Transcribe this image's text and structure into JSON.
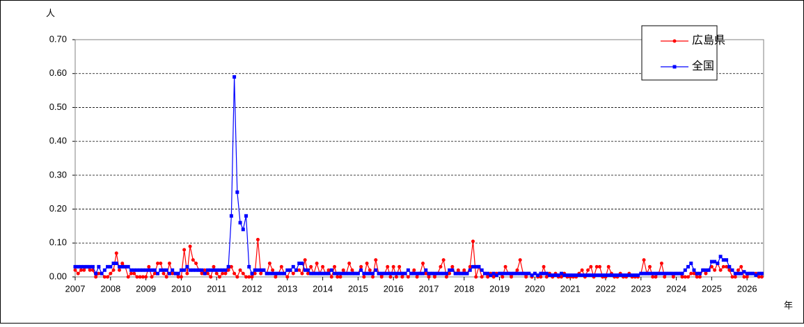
{
  "chart_data": {
    "type": "line",
    "y_label": "人",
    "x_label": "年",
    "categories": [
      "2007",
      null,
      null,
      null,
      null,
      null,
      null,
      null,
      null,
      null,
      null,
      null,
      "2008",
      null,
      null,
      null,
      null,
      null,
      null,
      null,
      null,
      null,
      null,
      null,
      "2009",
      null,
      null,
      null,
      null,
      null,
      null,
      null,
      null,
      null,
      null,
      null,
      "2010",
      null,
      null,
      null,
      null,
      null,
      null,
      null,
      null,
      null,
      null,
      null,
      "2011",
      null,
      null,
      null,
      null,
      null,
      null,
      null,
      null,
      null,
      null,
      null,
      "2012",
      null,
      null,
      null,
      null,
      null,
      null,
      null,
      null,
      null,
      null,
      null,
      "2013",
      null,
      null,
      null,
      null,
      null,
      null,
      null,
      null,
      null,
      null,
      null,
      "2014",
      null,
      null,
      null,
      null,
      null,
      null,
      null,
      null,
      null,
      null,
      null,
      "2015",
      null,
      null,
      null,
      null,
      null,
      null,
      null,
      null,
      null,
      null,
      null,
      "2016",
      null,
      null,
      null,
      null,
      null,
      null,
      null,
      null,
      null,
      null,
      null,
      "2017",
      null,
      null,
      null,
      null,
      null,
      null,
      null,
      null,
      null,
      null,
      null,
      "2018",
      null,
      null,
      null,
      null,
      null,
      null,
      null,
      null,
      null,
      null,
      null,
      "2019",
      null,
      null,
      null,
      null,
      null,
      null,
      null,
      null,
      null,
      null,
      null,
      "2020",
      null,
      null,
      null,
      null,
      null,
      null,
      null,
      null,
      null,
      null,
      null,
      "2021",
      null,
      null,
      null,
      null,
      null,
      null,
      null,
      null,
      null,
      null,
      null,
      "2022",
      null,
      null,
      null,
      null,
      null,
      null,
      null,
      null,
      null,
      null,
      null,
      "2023",
      null,
      null,
      null,
      null,
      null,
      null,
      null,
      null,
      null,
      null,
      null,
      "2024",
      null,
      null,
      null,
      null,
      null,
      null,
      null,
      null,
      null,
      null,
      null,
      "2025",
      null,
      null,
      null,
      null,
      null,
      null,
      null,
      null,
      null,
      null,
      null,
      "2026",
      null,
      null,
      null,
      null,
      null
    ],
    "series": [
      {
        "name": "広島県",
        "color": "#ff0000",
        "marker": "circle",
        "values": [
          0.02,
          0.01,
          0.02,
          0.02,
          0.03,
          0.02,
          0.02,
          0,
          0.01,
          0.01,
          0,
          0,
          0.01,
          0.02,
          0.07,
          0.02,
          0.04,
          0.03,
          0,
          0.01,
          0.01,
          0,
          0,
          0,
          0,
          0.03,
          0,
          0.01,
          0.04,
          0.04,
          0.01,
          0,
          0.04,
          0.01,
          0.01,
          0,
          0,
          0.08,
          0.01,
          0.09,
          0.05,
          0.04,
          0.02,
          0.01,
          0.02,
          0.01,
          0,
          0.03,
          0.01,
          0,
          0.01,
          0.01,
          0.02,
          0.03,
          0.01,
          0,
          0.02,
          0.01,
          0,
          0,
          0,
          0.01,
          0.11,
          0.01,
          0.02,
          0.01,
          0.04,
          0.02,
          0,
          0.01,
          0.03,
          0.01,
          0,
          0.02,
          0.01,
          0.02,
          0.02,
          0.01,
          0.05,
          0.01,
          0.03,
          0.01,
          0.04,
          0.01,
          0.03,
          0.01,
          0.02,
          0,
          0.03,
          0,
          0,
          0.02,
          0.01,
          0.04,
          0.02,
          0.01,
          0.01,
          0.03,
          0,
          0.04,
          0.02,
          0,
          0.05,
          0.01,
          0,
          0.01,
          0.03,
          0,
          0.03,
          0,
          0.03,
          0,
          0.01,
          0,
          0.01,
          0.02,
          0,
          0.01,
          0.04,
          0.01,
          0,
          0.01,
          0,
          0.01,
          0.03,
          0.05,
          0,
          0.01,
          0.03,
          0.01,
          0.02,
          0.01,
          0.02,
          0.01,
          0.03,
          0.105,
          0,
          0.03,
          0,
          0.01,
          0,
          0.01,
          0,
          0.01,
          0.01,
          0,
          0.03,
          0.01,
          0,
          0.01,
          0.02,
          0.05,
          0.01,
          0,
          0.01,
          0,
          0.01,
          0,
          0,
          0.03,
          0,
          0.01,
          0,
          0.01,
          0,
          0,
          0.01,
          0,
          0,
          0,
          0,
          0.01,
          0.02,
          0,
          0.02,
          0.03,
          0,
          0.03,
          0.03,
          0,
          0,
          0.03,
          0.01,
          0,
          0,
          0.01,
          0,
          0,
          0.01,
          0,
          0,
          0,
          0.01,
          0.05,
          0.01,
          0.03,
          0,
          0,
          0.01,
          0.04,
          0,
          0.01,
          0.01,
          0,
          0.01,
          0.01,
          0,
          0,
          0,
          0.01,
          0.01,
          0,
          0,
          0.02,
          0.01,
          0.02,
          0.03,
          0.02,
          0.04,
          0.02,
          0.03,
          0.03,
          0.02,
          0,
          0,
          0.02,
          0.03,
          0,
          0,
          0.01,
          0.01,
          0.01,
          0,
          0
        ]
      },
      {
        "name": "全国",
        "color": "#0000ff",
        "marker": "square",
        "values": [
          0.03,
          0.03,
          0.03,
          0.03,
          0.03,
          0.03,
          0.03,
          0.01,
          0.03,
          0.01,
          0.02,
          0.03,
          0.03,
          0.04,
          0.04,
          0.03,
          0.03,
          0.03,
          0.03,
          0.02,
          0.02,
          0.02,
          0.02,
          0.02,
          0.02,
          0.02,
          0.02,
          0.02,
          0.01,
          0.02,
          0.02,
          0.02,
          0.01,
          0.02,
          0.01,
          0.01,
          0.02,
          0.02,
          0.03,
          0.02,
          0.02,
          0.02,
          0.02,
          0.02,
          0.01,
          0.02,
          0.02,
          0.02,
          0.02,
          0.02,
          0.02,
          0.02,
          0.03,
          0.18,
          0.59,
          0.25,
          0.16,
          0.14,
          0.18,
          0.03,
          0.01,
          0.02,
          0.02,
          0.02,
          0.02,
          0.01,
          0.01,
          0.01,
          0.01,
          0.01,
          0.01,
          0.01,
          0.02,
          0.02,
          0.03,
          0.02,
          0.04,
          0.04,
          0.02,
          0.02,
          0.01,
          0.01,
          0.01,
          0.01,
          0.01,
          0.01,
          0.01,
          0.02,
          0.01,
          0.01,
          0.01,
          0.01,
          0.01,
          0.01,
          0.01,
          0.01,
          0.01,
          0.02,
          0.01,
          0.01,
          0.01,
          0.01,
          0.02,
          0.01,
          0.01,
          0.01,
          0.01,
          0.01,
          0.01,
          0.01,
          0.01,
          0.01,
          0.01,
          0.02,
          0.01,
          0.01,
          0.01,
          0.01,
          0.01,
          0.02,
          0.01,
          0.01,
          0.01,
          0.01,
          0.01,
          0.01,
          0.01,
          0.02,
          0.02,
          0.01,
          0.01,
          0.01,
          0.01,
          0.01,
          0.02,
          0.03,
          0.03,
          0.03,
          0.02,
          0.01,
          0.01,
          0.005,
          0.01,
          0.005,
          0.01,
          0.01,
          0.01,
          0.01,
          0.01,
          0.01,
          0.01,
          0.01,
          0.01,
          0.01,
          0.01,
          0.005,
          0.01,
          0.005,
          0.01,
          0.01,
          0.01,
          0.005,
          0.005,
          0.005,
          0.005,
          0.01,
          0.005,
          0.005,
          0.005,
          0.005,
          0.005,
          0.005,
          0.005,
          0.005,
          0.005,
          0.005,
          0.005,
          0.005,
          0.005,
          0.005,
          0.005,
          0.005,
          0.005,
          0.005,
          0.005,
          0.005,
          0.005,
          0.005,
          0.005,
          0.005,
          0.005,
          0.005,
          0.01,
          0.01,
          0.01,
          0.01,
          0.01,
          0.01,
          0.01,
          0.01,
          0.01,
          0.01,
          0.01,
          0.01,
          0.01,
          0.01,
          0.01,
          0.02,
          0.03,
          0.04,
          0.02,
          0.01,
          0.01,
          0.02,
          0.02,
          0.02,
          0.045,
          0.045,
          0.04,
          0.06,
          0.05,
          0.05,
          0.03,
          0.02,
          0.01,
          0.01,
          0.01,
          0.015,
          0.01,
          0.01,
          0.01,
          0.005,
          0.01,
          0.01
        ]
      }
    ],
    "ylim": [
      0,
      0.7
    ],
    "yticks": [
      {
        "value": 0,
        "label": "0.00"
      },
      {
        "value": 0.1,
        "label": "0.10"
      },
      {
        "value": 0.2,
        "label": "0.20"
      },
      {
        "value": 0.3,
        "label": "0.30"
      },
      {
        "value": 0.4,
        "label": "0.40"
      },
      {
        "value": 0.5,
        "label": "0.50"
      },
      {
        "value": 0.6,
        "label": "0.60"
      },
      {
        "value": 0.7,
        "label": "0.70"
      }
    ],
    "grid": true,
    "legend": "upper right"
  }
}
